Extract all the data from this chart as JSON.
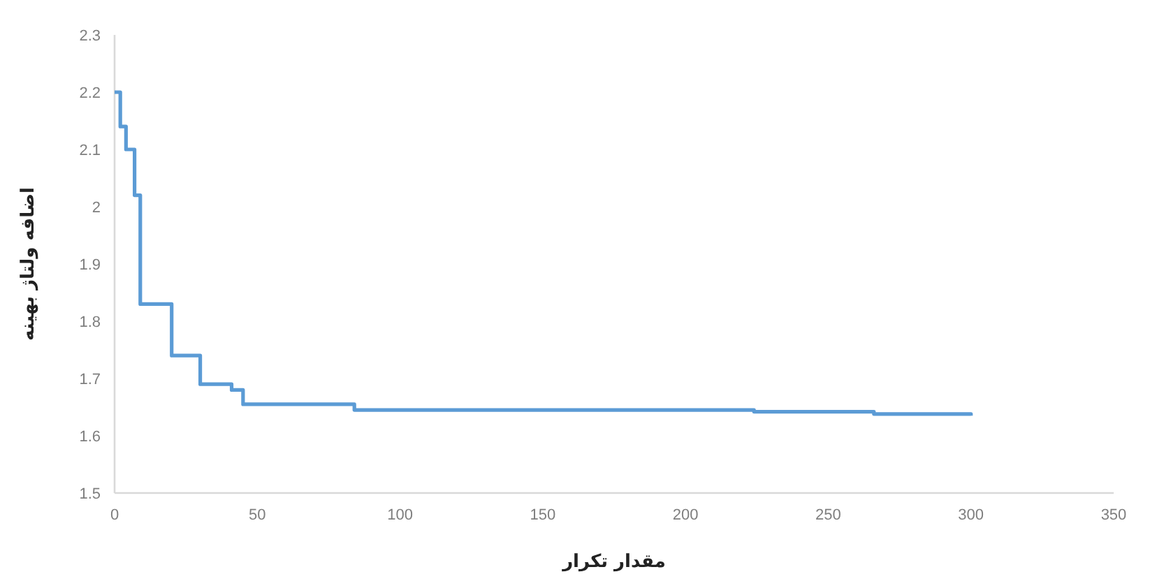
{
  "chart_data": {
    "type": "step",
    "xlabel": "مقدار تکرار",
    "ylabel": "اضافه ولتاژ بهینه",
    "x": [
      0,
      2,
      4,
      7,
      9,
      20,
      30,
      41,
      45,
      84,
      224,
      266,
      300
    ],
    "values": [
      2.2,
      2.14,
      2.1,
      2.02,
      1.83,
      1.74,
      1.69,
      1.68,
      1.655,
      1.645,
      1.642,
      1.638,
      1.635
    ],
    "color": "#5b9bd5",
    "xlim": [
      0,
      350
    ],
    "xticks": [
      0,
      50,
      100,
      150,
      200,
      250,
      300,
      350
    ],
    "ylim": [
      1.5,
      2.3
    ],
    "yticks": [
      1.5,
      1.6,
      1.7,
      1.8,
      1.9,
      2,
      2.1,
      2.2,
      2.3
    ],
    "grid": false,
    "marker": "none",
    "line_style": "solid"
  }
}
